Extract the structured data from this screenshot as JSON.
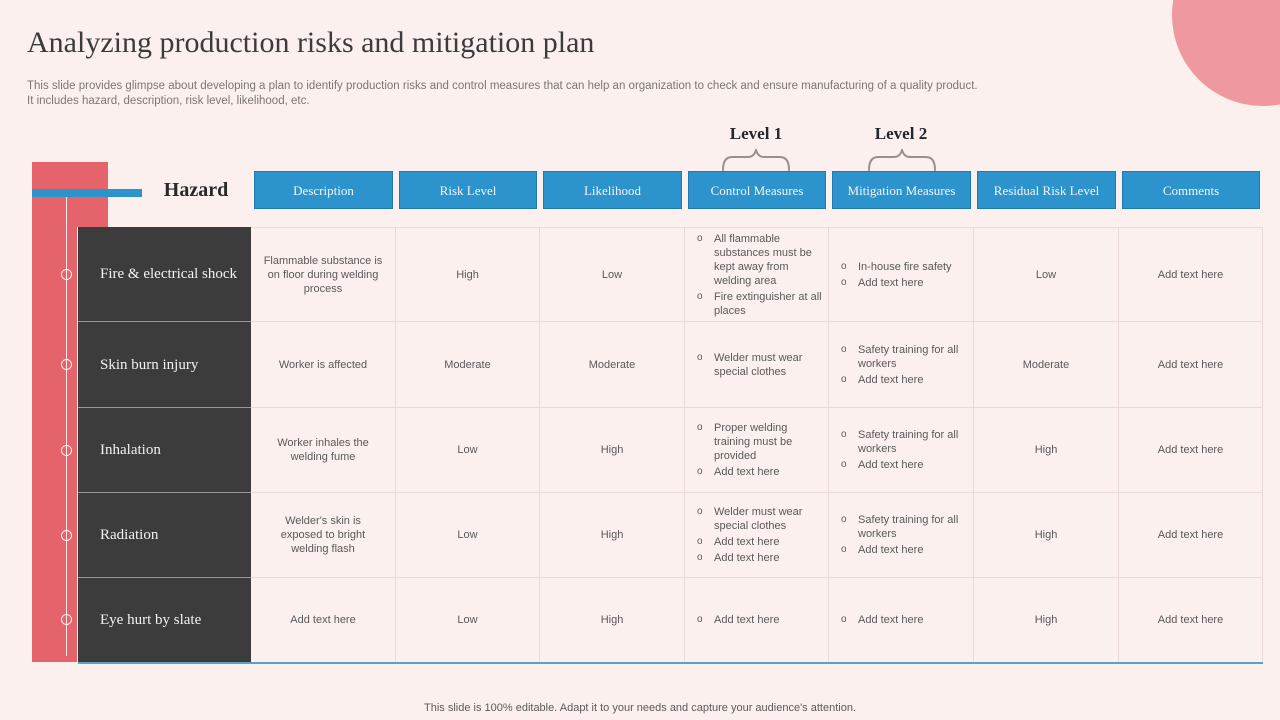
{
  "slide": {
    "title": "Analyzing production risks and mitigation plan",
    "subtitle_line1": "This slide provides glimpse about developing a plan to identify production risks and control measures that can help an organization to check and ensure manufacturing of a quality product.",
    "subtitle_line2": "It includes hazard, description, risk level, likelihood, etc.",
    "footer": "This slide is 100% editable. Adapt it to your needs and capture your audience's attention."
  },
  "levels": {
    "level1": "Level 1",
    "level2": "Level 2"
  },
  "hazard_label": "Hazard",
  "table": {
    "columns": [
      "Description",
      "Risk Level",
      "Likelihood",
      "Control Measures",
      "Mitigation Measures",
      "Residual Risk Level",
      "Comments"
    ],
    "rows": [
      {
        "hazard": "Fire & electrical shock",
        "description": "Flammable substance is on floor during welding process",
        "risk_level": "High",
        "likelihood": "Low",
        "control_measures": [
          "All flammable substances must be kept away from welding area",
          "Fire extinguisher at all places"
        ],
        "mitigation_measures": [
          "In-house fire safety",
          "Add text here"
        ],
        "residual_risk_level": "Low",
        "comments": "Add text here"
      },
      {
        "hazard": "Skin burn injury",
        "description": "Worker is affected",
        "risk_level": "Moderate",
        "likelihood": "Moderate",
        "control_measures": [
          "Welder must wear special clothes"
        ],
        "mitigation_measures": [
          "Safety training for all workers",
          "Add text here"
        ],
        "residual_risk_level": "Moderate",
        "comments": "Add text here"
      },
      {
        "hazard": "Inhalation",
        "description": "Worker inhales the welding fume",
        "risk_level": "Low",
        "likelihood": "High",
        "control_measures": [
          "Proper welding training must be provided",
          "Add text here"
        ],
        "mitigation_measures": [
          "Safety training for all workers",
          "Add text here"
        ],
        "residual_risk_level": "High",
        "comments": "Add text here"
      },
      {
        "hazard": "Radiation",
        "description": "Welder's skin is exposed to bright welding flash",
        "risk_level": "Low",
        "likelihood": "High",
        "control_measures": [
          "Welder must wear special clothes",
          "Add text here",
          "Add text here"
        ],
        "mitigation_measures": [
          "Safety training for all workers",
          "Add text here"
        ],
        "residual_risk_level": "High",
        "comments": "Add text here"
      },
      {
        "hazard": "Eye hurt by slate",
        "description": "Add text here",
        "risk_level": "Low",
        "likelihood": "High",
        "control_measures": [
          "Add text here"
        ],
        "mitigation_measures": [
          "Add text here"
        ],
        "residual_risk_level": "High",
        "comments": "Add text here"
      }
    ]
  },
  "colors": {
    "background": "#fcf0ee",
    "accent_blue": "#2d93cc",
    "accent_red": "#e5646c",
    "corner_circle": "#f0989f",
    "dark_cell": "#3d3c3c",
    "body_text": "#595959"
  }
}
